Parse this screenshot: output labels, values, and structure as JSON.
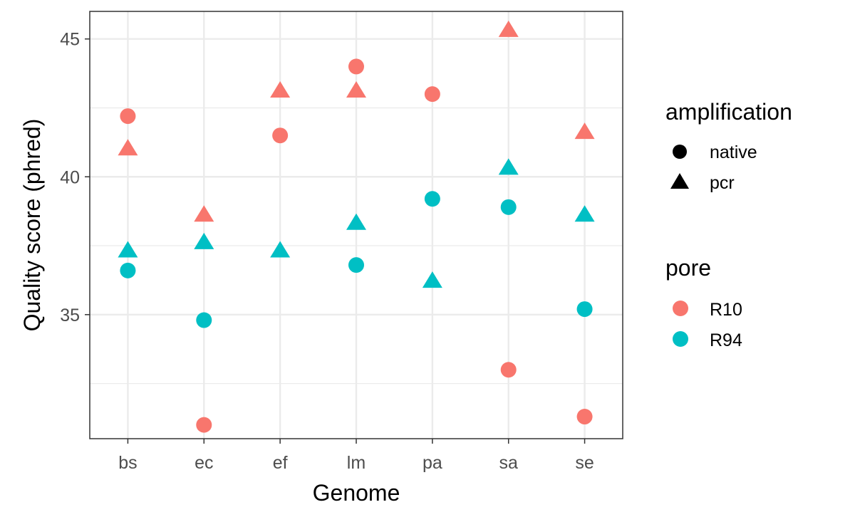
{
  "chart_data": {
    "type": "scatter",
    "title": "",
    "xlabel": "Genome",
    "ylabel": "Quality score (phred)",
    "categories": [
      "bs",
      "ec",
      "ef",
      "lm",
      "pa",
      "sa",
      "se"
    ],
    "ylim": [
      30.5,
      46.0
    ],
    "y_ticks": [
      35,
      40,
      45
    ],
    "grid": true,
    "legend_position": "right",
    "legends": {
      "shape": {
        "title": "amplification",
        "entries": [
          {
            "label": "native",
            "shape": "circle"
          },
          {
            "label": "pcr",
            "shape": "triangle"
          }
        ]
      },
      "color": {
        "title": "pore",
        "entries": [
          {
            "label": "R10",
            "color": "#F8766D"
          },
          {
            "label": "R94",
            "color": "#00BFC4"
          }
        ]
      }
    },
    "series": [
      {
        "pore": "R10",
        "amplification": "native",
        "color": "#F8766D",
        "shape": "circle",
        "values": [
          42.2,
          31.0,
          41.5,
          44.0,
          43.0,
          33.0,
          31.3
        ]
      },
      {
        "pore": "R10",
        "amplification": "pcr",
        "color": "#F8766D",
        "shape": "triangle",
        "values": [
          41.0,
          38.6,
          43.1,
          43.1,
          null,
          45.3,
          41.6
        ]
      },
      {
        "pore": "R94",
        "amplification": "native",
        "color": "#00BFC4",
        "shape": "circle",
        "values": [
          36.6,
          34.8,
          null,
          36.8,
          39.2,
          38.9,
          35.2
        ]
      },
      {
        "pore": "R94",
        "amplification": "pcr",
        "color": "#00BFC4",
        "shape": "triangle",
        "values": [
          37.3,
          37.6,
          37.3,
          38.3,
          36.2,
          40.3,
          38.6
        ]
      }
    ]
  }
}
